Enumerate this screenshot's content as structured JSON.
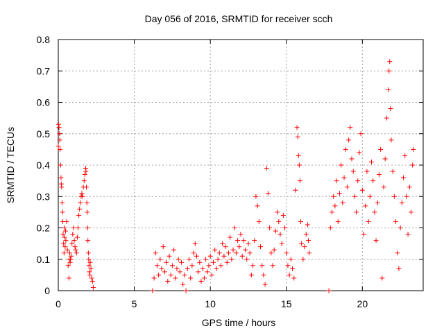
{
  "chart_data": {
    "type": "scatter",
    "title": "Day 056 of 2016, SRMTID for receiver scch",
    "xlabel": "GPS time / hours",
    "ylabel": "SRMTID / TECUs",
    "xlim": [
      0,
      24
    ],
    "ylim": [
      0,
      0.8
    ],
    "xticks": [
      0,
      5,
      10,
      15,
      20
    ],
    "xtick_labels": [
      "0",
      "5",
      "10",
      "15",
      "20"
    ],
    "yticks": [
      0,
      0.1,
      0.2,
      0.3,
      0.4,
      0.5,
      0.6,
      0.7,
      0.8
    ],
    "ytick_labels": [
      "0",
      "0.1",
      "0.2",
      "0.3",
      "0.4",
      "0.5",
      "0.6",
      "0.7",
      "0.8"
    ],
    "grid": true,
    "marker": "+",
    "color": "#ff0000",
    "series": [
      {
        "name": "SRMTID",
        "points": [
          [
            0.0,
            0.46
          ],
          [
            0.02,
            0.53
          ],
          [
            0.05,
            0.52
          ],
          [
            0.08,
            0.5
          ],
          [
            0.1,
            0.48
          ],
          [
            0.12,
            0.45
          ],
          [
            0.15,
            0.4
          ],
          [
            0.18,
            0.36
          ],
          [
            0.2,
            0.34
          ],
          [
            0.22,
            0.33
          ],
          [
            0.25,
            0.28
          ],
          [
            0.28,
            0.25
          ],
          [
            0.3,
            0.22
          ],
          [
            0.32,
            0.18
          ],
          [
            0.35,
            0.15
          ],
          [
            0.38,
            0.12
          ],
          [
            0.4,
            0.2
          ],
          [
            0.42,
            0.17
          ],
          [
            0.45,
            0.14
          ],
          [
            0.48,
            0.19
          ],
          [
            0.5,
            0.16
          ],
          [
            0.55,
            0.22
          ],
          [
            0.6,
            0.13
          ],
          [
            0.65,
            0.08
          ],
          [
            0.7,
            0.04
          ],
          [
            0.72,
            0.1
          ],
          [
            0.75,
            0.12
          ],
          [
            0.78,
            0.09
          ],
          [
            0.8,
            0.1
          ],
          [
            0.85,
            0.11
          ],
          [
            0.9,
            0.15
          ],
          [
            0.95,
            0.18
          ],
          [
            1.0,
            0.2
          ],
          [
            1.05,
            0.16
          ],
          [
            1.1,
            0.14
          ],
          [
            1.15,
            0.13
          ],
          [
            1.2,
            0.12
          ],
          [
            1.25,
            0.17
          ],
          [
            1.3,
            0.2
          ],
          [
            1.35,
            0.24
          ],
          [
            1.4,
            0.26
          ],
          [
            1.45,
            0.28
          ],
          [
            1.5,
            0.3
          ],
          [
            1.55,
            0.31
          ],
          [
            1.6,
            0.3
          ],
          [
            1.65,
            0.33
          ],
          [
            1.7,
            0.35
          ],
          [
            1.75,
            0.37
          ],
          [
            1.8,
            0.39
          ],
          [
            1.82,
            0.38
          ],
          [
            1.85,
            0.33
          ],
          [
            1.88,
            0.28
          ],
          [
            1.9,
            0.25
          ],
          [
            1.92,
            0.2
          ],
          [
            1.95,
            0.16
          ],
          [
            1.98,
            0.12
          ],
          [
            2.0,
            0.1
          ],
          [
            2.02,
            0.08
          ],
          [
            2.05,
            0.06
          ],
          [
            2.08,
            0.05
          ],
          [
            2.1,
            0.09
          ],
          [
            2.15,
            0.07
          ],
          [
            2.2,
            0.04
          ],
          [
            2.25,
            0.03
          ],
          [
            2.3,
            0.01
          ],
          [
            6.2,
            0.0
          ],
          [
            6.3,
            0.04
          ],
          [
            6.4,
            0.12
          ],
          [
            6.5,
            0.08
          ],
          [
            6.6,
            0.05
          ],
          [
            6.7,
            0.1
          ],
          [
            6.8,
            0.07
          ],
          [
            6.9,
            0.14
          ],
          [
            7.0,
            0.06
          ],
          [
            7.1,
            0.09
          ],
          [
            7.2,
            0.03
          ],
          [
            7.3,
            0.11
          ],
          [
            7.4,
            0.05
          ],
          [
            7.5,
            0.08
          ],
          [
            7.6,
            0.13
          ],
          [
            7.7,
            0.04
          ],
          [
            7.8,
            0.07
          ],
          [
            7.9,
            0.1
          ],
          [
            8.0,
            0.06
          ],
          [
            8.1,
            0.09
          ],
          [
            8.2,
            0.02
          ],
          [
            8.3,
            0.05
          ],
          [
            8.4,
            0.0
          ],
          [
            8.5,
            0.07
          ],
          [
            8.6,
            0.1
          ],
          [
            8.7,
            0.04
          ],
          [
            8.8,
            0.08
          ],
          [
            8.9,
            0.12
          ],
          [
            9.0,
            0.15
          ],
          [
            9.1,
            0.11
          ],
          [
            9.2,
            0.06
          ],
          [
            9.3,
            0.09
          ],
          [
            9.4,
            0.03
          ],
          [
            9.5,
            0.07
          ],
          [
            9.6,
            0.04
          ],
          [
            9.7,
            0.1
          ],
          [
            9.8,
            0.06
          ],
          [
            9.9,
            0.08
          ],
          [
            10.0,
            0.11
          ],
          [
            10.1,
            0.05
          ],
          [
            10.2,
            0.09
          ],
          [
            10.3,
            0.13
          ],
          [
            10.4,
            0.07
          ],
          [
            10.5,
            0.1
          ],
          [
            10.6,
            0.12
          ],
          [
            10.7,
            0.08
          ],
          [
            10.8,
            0.15
          ],
          [
            10.9,
            0.11
          ],
          [
            11.0,
            0.14
          ],
          [
            11.1,
            0.09
          ],
          [
            11.2,
            0.12
          ],
          [
            11.3,
            0.17
          ],
          [
            11.4,
            0.1
          ],
          [
            11.5,
            0.13
          ],
          [
            11.6,
            0.2
          ],
          [
            11.7,
            0.12
          ],
          [
            11.8,
            0.16
          ],
          [
            11.9,
            0.14
          ],
          [
            12.0,
            0.18
          ],
          [
            12.1,
            0.11
          ],
          [
            12.2,
            0.16
          ],
          [
            12.3,
            0.13
          ],
          [
            12.4,
            0.1
          ],
          [
            12.5,
            0.15
          ],
          [
            12.6,
            0.12
          ],
          [
            12.7,
            0.05
          ],
          [
            12.8,
            0.08
          ],
          [
            12.9,
            0.16
          ],
          [
            13.0,
            0.3
          ],
          [
            13.1,
            0.27
          ],
          [
            13.2,
            0.22
          ],
          [
            13.3,
            0.14
          ],
          [
            13.4,
            0.08
          ],
          [
            13.5,
            0.05
          ],
          [
            13.6,
            0.02
          ],
          [
            13.7,
            0.39
          ],
          [
            13.8,
            0.31
          ],
          [
            13.9,
            0.2
          ],
          [
            14.0,
            0.12
          ],
          [
            14.1,
            0.08
          ],
          [
            14.2,
            0.13
          ],
          [
            14.3,
            0.19
          ],
          [
            14.4,
            0.25
          ],
          [
            14.5,
            0.22
          ],
          [
            14.6,
            0.18
          ],
          [
            14.7,
            0.15
          ],
          [
            14.8,
            0.24
          ],
          [
            14.9,
            0.2
          ],
          [
            15.0,
            0.12
          ],
          [
            15.1,
            0.08
          ],
          [
            15.2,
            0.05
          ],
          [
            15.3,
            0.1
          ],
          [
            15.4,
            0.07
          ],
          [
            15.5,
            0.04
          ],
          [
            15.6,
            0.32
          ],
          [
            15.7,
            0.52
          ],
          [
            15.75,
            0.49
          ],
          [
            15.8,
            0.43
          ],
          [
            15.85,
            0.4
          ],
          [
            15.9,
            0.35
          ],
          [
            15.95,
            0.22
          ],
          [
            16.0,
            0.15
          ],
          [
            16.1,
            0.1
          ],
          [
            16.2,
            0.14
          ],
          [
            16.3,
            0.18
          ],
          [
            16.4,
            0.21
          ],
          [
            16.45,
            0.16
          ],
          [
            16.5,
            0.12
          ],
          [
            17.8,
            0.0
          ],
          [
            17.9,
            0.2
          ],
          [
            18.0,
            0.25
          ],
          [
            18.1,
            0.3
          ],
          [
            18.2,
            0.27
          ],
          [
            18.3,
            0.35
          ],
          [
            18.4,
            0.22
          ],
          [
            18.5,
            0.31
          ],
          [
            18.6,
            0.4
          ],
          [
            18.7,
            0.28
          ],
          [
            18.8,
            0.36
          ],
          [
            18.9,
            0.45
          ],
          [
            19.0,
            0.33
          ],
          [
            19.1,
            0.48
          ],
          [
            19.2,
            0.52
          ],
          [
            19.3,
            0.42
          ],
          [
            19.4,
            0.38
          ],
          [
            19.5,
            0.3
          ],
          [
            19.6,
            0.25
          ],
          [
            19.7,
            0.35
          ],
          [
            19.8,
            0.44
          ],
          [
            19.9,
            0.5
          ],
          [
            20.0,
            0.32
          ],
          [
            20.1,
            0.18
          ],
          [
            20.2,
            0.27
          ],
          [
            20.3,
            0.38
          ],
          [
            20.4,
            0.22
          ],
          [
            20.5,
            0.3
          ],
          [
            20.6,
            0.41
          ],
          [
            20.7,
            0.35
          ],
          [
            20.8,
            0.25
          ],
          [
            20.9,
            0.16
          ],
          [
            21.0,
            0.28
          ],
          [
            21.1,
            0.37
          ],
          [
            21.2,
            0.45
          ],
          [
            21.3,
            0.04
          ],
          [
            21.4,
            0.33
          ],
          [
            21.5,
            0.42
          ],
          [
            21.6,
            0.55
          ],
          [
            21.7,
            0.64
          ],
          [
            21.75,
            0.7
          ],
          [
            21.8,
            0.73
          ],
          [
            21.85,
            0.58
          ],
          [
            21.9,
            0.48
          ],
          [
            22.0,
            0.38
          ],
          [
            22.1,
            0.3
          ],
          [
            22.2,
            0.22
          ],
          [
            22.3,
            0.12
          ],
          [
            22.4,
            0.07
          ],
          [
            22.5,
            0.2
          ],
          [
            22.6,
            0.28
          ],
          [
            22.7,
            0.36
          ],
          [
            22.8,
            0.43
          ],
          [
            22.9,
            0.3
          ],
          [
            23.0,
            0.18
          ],
          [
            23.1,
            0.33
          ],
          [
            23.2,
            0.25
          ],
          [
            23.3,
            0.4
          ],
          [
            23.35,
            0.45
          ]
        ]
      }
    ]
  }
}
